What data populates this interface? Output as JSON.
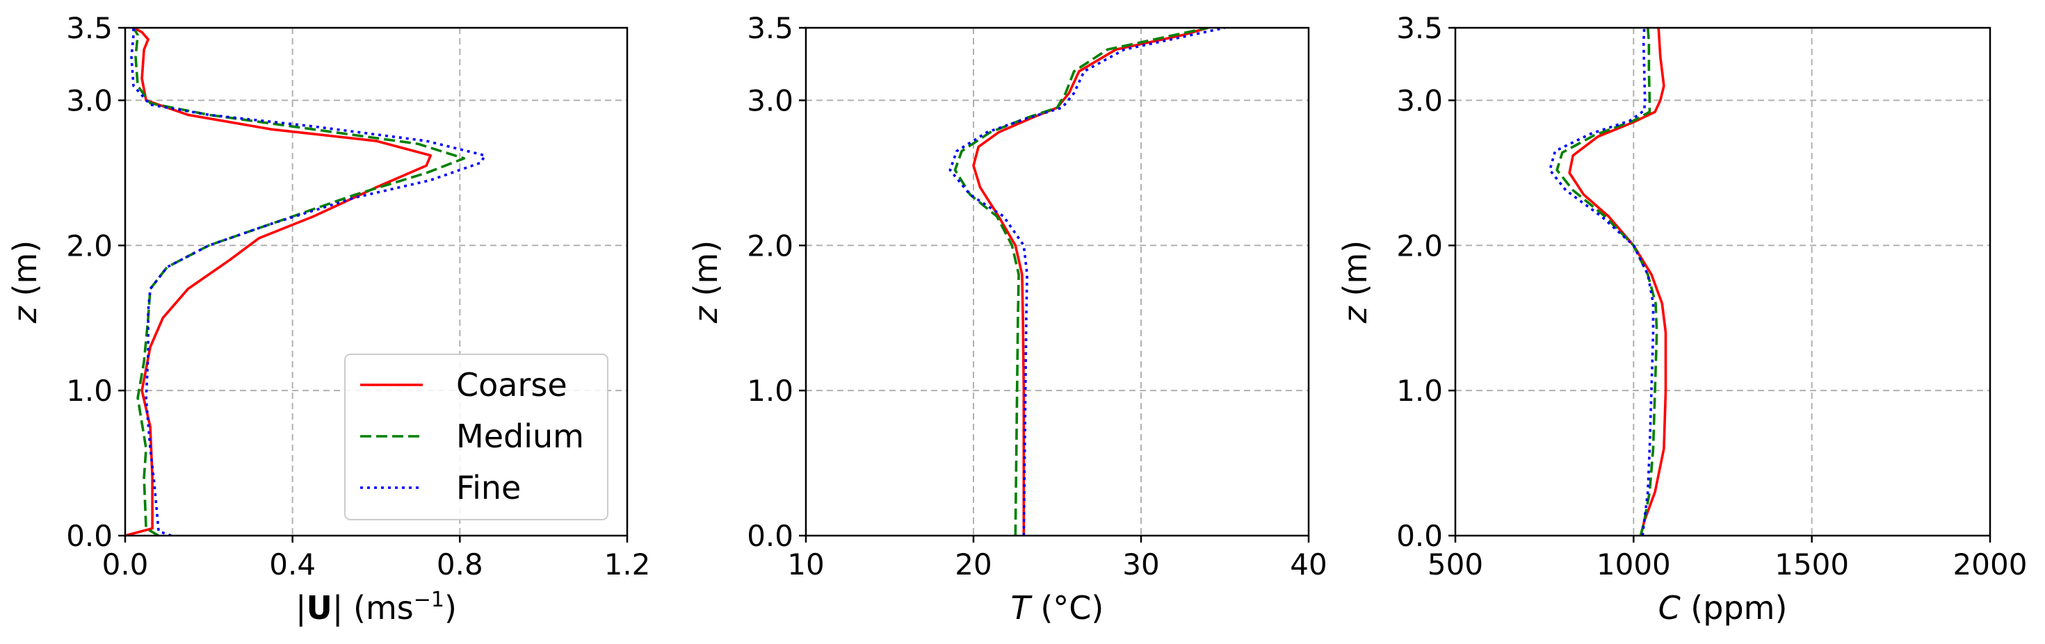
{
  "chart_data": [
    {
      "type": "line",
      "xlabel_parts": [
        "|",
        "U",
        "| (ms",
        "−1",
        ")"
      ],
      "ylabel_parts": [
        "z",
        " (m)"
      ],
      "xlim": [
        0.0,
        1.2
      ],
      "ylim": [
        0.0,
        3.5
      ],
      "xticks": [
        "0.0",
        "0.4",
        "0.8",
        "1.2"
      ],
      "xtick_values": [
        0.0,
        0.4,
        0.8,
        1.2
      ],
      "yticks": [
        "0.0",
        "1.0",
        "2.0",
        "3.0",
        "3.5"
      ],
      "ytick_values": [
        0.0,
        1.0,
        2.0,
        3.0,
        3.5
      ],
      "grid": true,
      "legend": {
        "position": "lower-right",
        "entries": [
          "Coarse",
          "Medium",
          "Fine"
        ]
      },
      "series": [
        {
          "name": "Coarse",
          "color": "#ff0000",
          "dash": "solid",
          "points": [
            [
              0.0,
              0.0
            ],
            [
              0.065,
              0.05
            ],
            [
              0.065,
              0.4
            ],
            [
              0.06,
              0.75
            ],
            [
              0.04,
              1.0
            ],
            [
              0.06,
              1.3
            ],
            [
              0.09,
              1.5
            ],
            [
              0.15,
              1.7
            ],
            [
              0.25,
              1.9
            ],
            [
              0.32,
              2.05
            ],
            [
              0.45,
              2.2
            ],
            [
              0.6,
              2.4
            ],
            [
              0.72,
              2.55
            ],
            [
              0.73,
              2.62
            ],
            [
              0.6,
              2.72
            ],
            [
              0.35,
              2.8
            ],
            [
              0.15,
              2.9
            ],
            [
              0.05,
              3.0
            ],
            [
              0.04,
              3.15
            ],
            [
              0.045,
              3.35
            ],
            [
              0.055,
              3.42
            ],
            [
              0.04,
              3.47
            ],
            [
              0.02,
              3.5
            ]
          ]
        },
        {
          "name": "Medium",
          "color": "#008000",
          "dash": "dashed",
          "points": [
            [
              0.08,
              0.0
            ],
            [
              0.05,
              0.05
            ],
            [
              0.045,
              0.4
            ],
            [
              0.05,
              0.6
            ],
            [
              0.03,
              0.95
            ],
            [
              0.045,
              1.2
            ],
            [
              0.055,
              1.5
            ],
            [
              0.06,
              1.7
            ],
            [
              0.1,
              1.85
            ],
            [
              0.2,
              2.0
            ],
            [
              0.35,
              2.15
            ],
            [
              0.55,
              2.35
            ],
            [
              0.72,
              2.5
            ],
            [
              0.81,
              2.6
            ],
            [
              0.7,
              2.7
            ],
            [
              0.45,
              2.8
            ],
            [
              0.2,
              2.9
            ],
            [
              0.06,
              2.98
            ],
            [
              0.03,
              3.1
            ],
            [
              0.025,
              3.3
            ],
            [
              0.03,
              3.45
            ],
            [
              0.02,
              3.5
            ]
          ]
        },
        {
          "name": "Fine",
          "color": "#0000ff",
          "dash": "dotted",
          "points": [
            [
              0.11,
              0.0
            ],
            [
              0.08,
              0.03
            ],
            [
              0.07,
              0.35
            ],
            [
              0.06,
              0.6
            ],
            [
              0.05,
              0.95
            ],
            [
              0.055,
              1.25
            ],
            [
              0.055,
              1.55
            ],
            [
              0.06,
              1.7
            ],
            [
              0.1,
              1.85
            ],
            [
              0.2,
              2.0
            ],
            [
              0.35,
              2.15
            ],
            [
              0.55,
              2.33
            ],
            [
              0.73,
              2.45
            ],
            [
              0.85,
              2.57
            ],
            [
              0.86,
              2.62
            ],
            [
              0.72,
              2.72
            ],
            [
              0.45,
              2.82
            ],
            [
              0.2,
              2.9
            ],
            [
              0.06,
              2.97
            ],
            [
              0.02,
              3.1
            ],
            [
              0.015,
              3.3
            ],
            [
              0.02,
              3.45
            ],
            [
              0.02,
              3.5
            ]
          ]
        }
      ]
    },
    {
      "type": "line",
      "xlabel_parts": [
        "T",
        " (°C)"
      ],
      "ylabel_parts": [
        "z",
        " (m)"
      ],
      "xlim": [
        10,
        40
      ],
      "ylim": [
        0.0,
        3.5
      ],
      "xticks": [
        "10",
        "20",
        "30",
        "40"
      ],
      "xtick_values": [
        10,
        20,
        30,
        40
      ],
      "yticks": [
        "0.0",
        "1.0",
        "2.0",
        "3.0",
        "3.5"
      ],
      "ytick_values": [
        0.0,
        1.0,
        2.0,
        3.0,
        3.5
      ],
      "grid": true,
      "series": [
        {
          "name": "Coarse",
          "color": "#ff0000",
          "dash": "solid",
          "points": [
            [
              23.0,
              0.0
            ],
            [
              23.0,
              0.5
            ],
            [
              23.0,
              1.0
            ],
            [
              22.95,
              1.5
            ],
            [
              22.9,
              1.8
            ],
            [
              22.5,
              2.0
            ],
            [
              21.5,
              2.2
            ],
            [
              20.4,
              2.4
            ],
            [
              20.0,
              2.55
            ],
            [
              20.3,
              2.68
            ],
            [
              21.5,
              2.78
            ],
            [
              23.5,
              2.88
            ],
            [
              25.0,
              2.95
            ],
            [
              25.7,
              3.05
            ],
            [
              26.3,
              3.2
            ],
            [
              28.5,
              3.35
            ],
            [
              32.5,
              3.45
            ],
            [
              34.0,
              3.5
            ]
          ]
        },
        {
          "name": "Medium",
          "color": "#008000",
          "dash": "dashed",
          "points": [
            [
              22.5,
              0.0
            ],
            [
              22.55,
              0.5
            ],
            [
              22.6,
              1.0
            ],
            [
              22.65,
              1.5
            ],
            [
              22.7,
              1.8
            ],
            [
              22.3,
              2.0
            ],
            [
              21.4,
              2.2
            ],
            [
              19.8,
              2.35
            ],
            [
              18.9,
              2.52
            ],
            [
              19.3,
              2.65
            ],
            [
              21.0,
              2.78
            ],
            [
              23.2,
              2.88
            ],
            [
              25.0,
              2.95
            ],
            [
              25.5,
              3.05
            ],
            [
              26.0,
              3.2
            ],
            [
              28.0,
              3.35
            ],
            [
              32.0,
              3.45
            ],
            [
              34.0,
              3.5
            ]
          ]
        },
        {
          "name": "Fine",
          "color": "#0000ff",
          "dash": "dotted",
          "points": [
            [
              23.0,
              0.0
            ],
            [
              23.05,
              0.5
            ],
            [
              23.1,
              1.0
            ],
            [
              23.15,
              1.5
            ],
            [
              23.2,
              1.8
            ],
            [
              23.0,
              2.0
            ],
            [
              21.8,
              2.2
            ],
            [
              19.8,
              2.35
            ],
            [
              18.6,
              2.52
            ],
            [
              19.0,
              2.65
            ],
            [
              20.8,
              2.78
            ],
            [
              23.3,
              2.88
            ],
            [
              25.3,
              2.95
            ],
            [
              26.0,
              3.05
            ],
            [
              26.6,
              3.2
            ],
            [
              29.0,
              3.35
            ],
            [
              33.0,
              3.45
            ],
            [
              35.0,
              3.5
            ]
          ]
        }
      ]
    },
    {
      "type": "line",
      "xlabel_parts": [
        "C",
        " (ppm)"
      ],
      "ylabel_parts": [
        "z",
        " (m)"
      ],
      "xlim": [
        500,
        2000
      ],
      "ylim": [
        0.0,
        3.5
      ],
      "xticks": [
        "500",
        "1000",
        "1500",
        "2000"
      ],
      "xtick_values": [
        500,
        1000,
        1500,
        2000
      ],
      "yticks": [
        "0.0",
        "1.0",
        "2.0",
        "3.0",
        "3.5"
      ],
      "ytick_values": [
        0.0,
        1.0,
        2.0,
        3.0,
        3.5
      ],
      "grid": true,
      "series": [
        {
          "name": "Coarse",
          "color": "#ff0000",
          "dash": "solid",
          "points": [
            [
              1020,
              0.0
            ],
            [
              1030,
              0.1
            ],
            [
              1060,
              0.3
            ],
            [
              1085,
              0.6
            ],
            [
              1090,
              1.0
            ],
            [
              1090,
              1.4
            ],
            [
              1080,
              1.6
            ],
            [
              1050,
              1.8
            ],
            [
              1000,
              2.0
            ],
            [
              930,
              2.2
            ],
            [
              860,
              2.35
            ],
            [
              820,
              2.5
            ],
            [
              830,
              2.62
            ],
            [
              900,
              2.75
            ],
            [
              1000,
              2.85
            ],
            [
              1060,
              2.92
            ],
            [
              1075,
              3.0
            ],
            [
              1085,
              3.1
            ],
            [
              1075,
              3.3
            ],
            [
              1070,
              3.5
            ]
          ]
        },
        {
          "name": "Medium",
          "color": "#008000",
          "dash": "dashed",
          "points": [
            [
              1020,
              0.0
            ],
            [
              1030,
              0.1
            ],
            [
              1045,
              0.3
            ],
            [
              1055,
              0.6
            ],
            [
              1060,
              1.0
            ],
            [
              1065,
              1.4
            ],
            [
              1062,
              1.6
            ],
            [
              1040,
              1.8
            ],
            [
              1000,
              2.0
            ],
            [
              920,
              2.2
            ],
            [
              830,
              2.38
            ],
            [
              785,
              2.52
            ],
            [
              800,
              2.64
            ],
            [
              890,
              2.76
            ],
            [
              1000,
              2.86
            ],
            [
              1045,
              2.92
            ],
            [
              1045,
              3.0
            ],
            [
              1043,
              3.2
            ],
            [
              1043,
              3.4
            ],
            [
              1040,
              3.5
            ]
          ]
        },
        {
          "name": "Fine",
          "color": "#0000ff",
          "dash": "dotted",
          "points": [
            [
              1025,
              0.0
            ],
            [
              1030,
              0.1
            ],
            [
              1040,
              0.3
            ],
            [
              1045,
              0.6
            ],
            [
              1050,
              1.0
            ],
            [
              1055,
              1.4
            ],
            [
              1055,
              1.6
            ],
            [
              1040,
              1.8
            ],
            [
              1000,
              2.0
            ],
            [
              910,
              2.2
            ],
            [
              810,
              2.38
            ],
            [
              765,
              2.52
            ],
            [
              780,
              2.65
            ],
            [
              880,
              2.77
            ],
            [
              990,
              2.86
            ],
            [
              1030,
              2.93
            ],
            [
              1032,
              3.0
            ],
            [
              1030,
              3.2
            ],
            [
              1028,
              3.4
            ],
            [
              1030,
              3.5
            ]
          ]
        }
      ]
    }
  ]
}
